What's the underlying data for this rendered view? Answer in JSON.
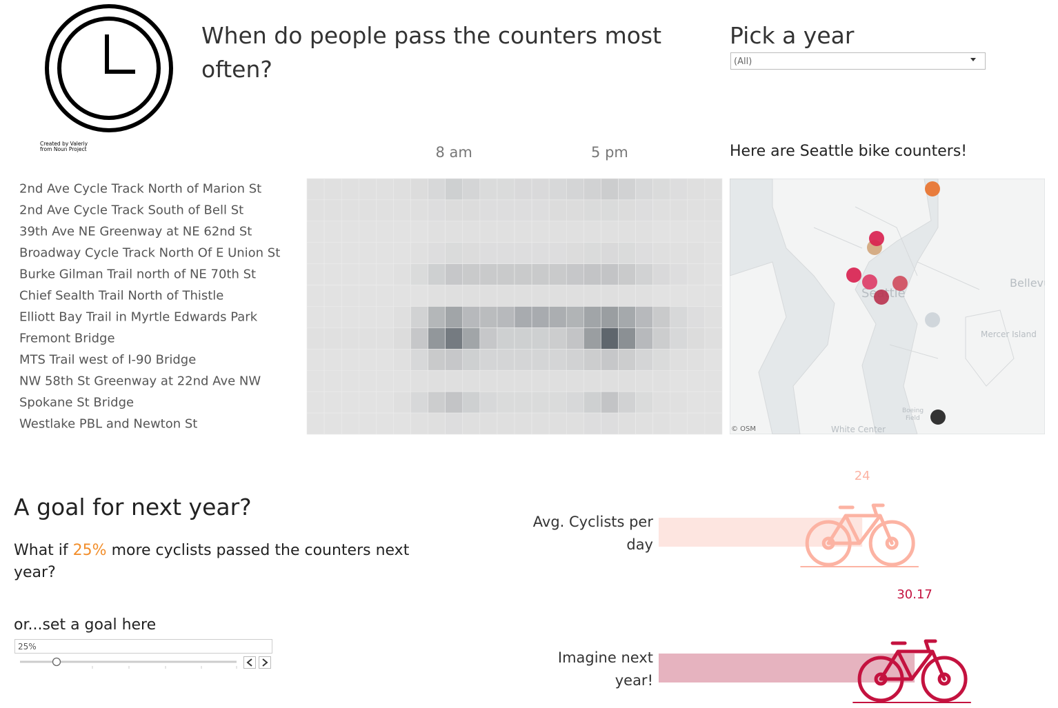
{
  "header": {
    "title": "When do people pass the counters most often?",
    "icon_credit": [
      "Created by Valeriy",
      "from Noun Project"
    ]
  },
  "year_filter": {
    "label": "Pick a year",
    "value": "(All)"
  },
  "heatmap": {
    "hour_labels": [
      {
        "hour": 8,
        "label": "8 am"
      },
      {
        "hour": 17,
        "label": "5 pm"
      }
    ],
    "counters": [
      "2nd Ave Cycle Track North of Marion St",
      "2nd Ave Cycle Track South of Bell St",
      "39th Ave NE Greenway at NE 62nd St",
      "Broadway Cycle Track North Of E Union St",
      "Burke Gilman Trail north of NE 70th St",
      "Chief Sealth Trail North of Thistle",
      "Elliott Bay Trail in Myrtle Edwards Park",
      "Fremont Bridge",
      "MTS Trail west of I-90 Bridge",
      "NW 58th St Greenway at 22nd Ave NW",
      "Spokane St Bridge",
      "Westlake PBL and Newton St"
    ],
    "values": [
      [
        2,
        2,
        2,
        2,
        2,
        3,
        5,
        8,
        14,
        10,
        6,
        6,
        7,
        7,
        8,
        10,
        12,
        16,
        12,
        8,
        6,
        4,
        3,
        2
      ],
      [
        2,
        2,
        2,
        2,
        2,
        2,
        3,
        4,
        5,
        5,
        4,
        4,
        4,
        4,
        5,
        5,
        6,
        6,
        5,
        4,
        3,
        3,
        2,
        2
      ],
      [
        1,
        1,
        1,
        1,
        1,
        1,
        1,
        2,
        2,
        2,
        2,
        2,
        2,
        2,
        2,
        2,
        2,
        2,
        2,
        2,
        1,
        1,
        1,
        1
      ],
      [
        1,
        1,
        1,
        1,
        1,
        1,
        2,
        4,
        6,
        5,
        4,
        4,
        4,
        4,
        4,
        5,
        6,
        7,
        6,
        4,
        3,
        2,
        2,
        1
      ],
      [
        1,
        1,
        1,
        1,
        1,
        2,
        6,
        14,
        20,
        18,
        18,
        18,
        18,
        18,
        18,
        20,
        22,
        22,
        18,
        12,
        7,
        4,
        2,
        1
      ],
      [
        1,
        1,
        1,
        1,
        1,
        1,
        1,
        2,
        3,
        3,
        3,
        3,
        3,
        3,
        3,
        3,
        3,
        3,
        2,
        2,
        1,
        1,
        1,
        1
      ],
      [
        1,
        1,
        1,
        1,
        1,
        3,
        12,
        32,
        45,
        30,
        28,
        30,
        40,
        40,
        38,
        34,
        45,
        50,
        42,
        30,
        18,
        8,
        4,
        2
      ],
      [
        2,
        2,
        2,
        2,
        2,
        5,
        20,
        55,
        75,
        45,
        20,
        14,
        14,
        14,
        16,
        22,
        50,
        90,
        60,
        30,
        16,
        8,
        5,
        3
      ],
      [
        1,
        1,
        1,
        1,
        1,
        2,
        8,
        18,
        20,
        14,
        10,
        10,
        10,
        10,
        10,
        12,
        16,
        20,
        16,
        10,
        6,
        3,
        2,
        1
      ],
      [
        1,
        1,
        1,
        1,
        1,
        1,
        2,
        3,
        3,
        3,
        3,
        3,
        3,
        3,
        3,
        3,
        3,
        3,
        3,
        2,
        2,
        1,
        1,
        1
      ],
      [
        1,
        1,
        1,
        1,
        1,
        3,
        8,
        16,
        22,
        14,
        8,
        6,
        6,
        6,
        6,
        8,
        14,
        22,
        12,
        6,
        3,
        2,
        1,
        1
      ],
      [
        1,
        1,
        1,
        1,
        1,
        1,
        2,
        3,
        4,
        3,
        3,
        3,
        3,
        3,
        3,
        3,
        4,
        4,
        3,
        2,
        2,
        1,
        1,
        1
      ]
    ]
  },
  "map": {
    "title": "Here are Seattle bike counters!",
    "seattle": "Seattle",
    "bellevue": "Bellevue",
    "mercer_island": "Mercer Island",
    "white_center": "White Center",
    "boeing_field": [
      "Boeing",
      "Field"
    ],
    "credit": "© OSM"
  },
  "goal": {
    "title": "A goal for next year?",
    "question_prefix": "What if",
    "percent": "25%",
    "question_suffix": "more cyclists passed the counters next year?",
    "parameter_label": "or...set a goal here",
    "parameter_value": "25%"
  },
  "goal_chart": {
    "bars": [
      {
        "label": "Avg. Cyclists per day",
        "value": 24,
        "color": "#fcb3a3",
        "bar_color": "#fde5e0"
      },
      {
        "label": "Imagine next year!",
        "value": 30.17,
        "color": "#c4123f",
        "bar_color": "#e6b3bf"
      }
    ]
  }
}
